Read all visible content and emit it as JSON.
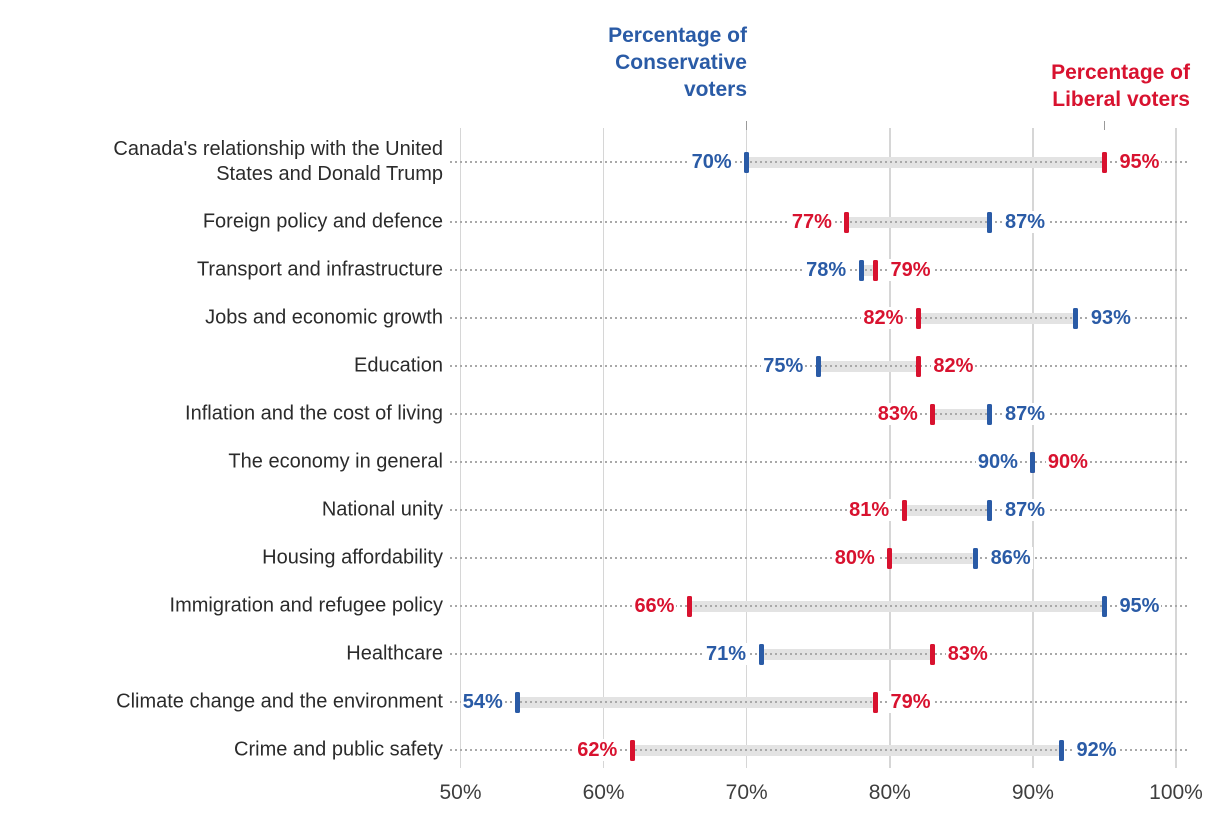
{
  "chart_data": {
    "type": "dumbbell",
    "annotations": {
      "conservative_header": [
        "Percentage of",
        "Conservative",
        "voters"
      ],
      "liberal_header": [
        "Percentage of",
        "Liberal voters"
      ]
    },
    "categories": [
      "Canada's relationship with the United States and Donald Trump",
      "Foreign policy and defence",
      "Transport and infrastructure",
      "Jobs and economic growth",
      "Education",
      "Inflation and the cost of living",
      "The economy in general",
      "National unity",
      "Housing affordability",
      "Immigration and refugee policy",
      "Healthcare",
      "Climate change and the environment",
      "Crime and public safety"
    ],
    "series": [
      {
        "name": "Conservative",
        "color": "#2a5ba6",
        "values": [
          70,
          87,
          78,
          93,
          75,
          87,
          90,
          87,
          86,
          95,
          71,
          54,
          92
        ]
      },
      {
        "name": "Liberal",
        "color": "#d8122f",
        "values": [
          95,
          77,
          79,
          82,
          82,
          83,
          90,
          81,
          80,
          66,
          83,
          79,
          62
        ]
      }
    ],
    "value_suffix": "%",
    "x_axis": {
      "tick_labels": [
        "50%",
        "60%",
        "70%",
        "80%",
        "90%",
        "100%"
      ],
      "tick_values": [
        50,
        60,
        70,
        80,
        90,
        100
      ],
      "min": 50,
      "max": 100
    },
    "grid": true,
    "legend_position": "top",
    "colors": {
      "connector": "#e3e3e3",
      "gridline": "#d6d6d6",
      "dotted_leader": "#a9a9a9",
      "callout_tick": "#9a9a9a",
      "category_text": "#2b2b2b",
      "axis_text": "#3e3e3e",
      "background": "#ffffff"
    }
  }
}
